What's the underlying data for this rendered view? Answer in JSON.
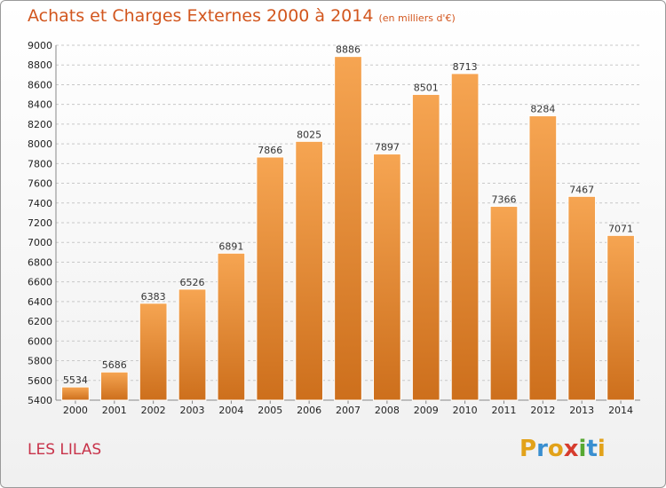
{
  "header": {
    "title": "Achats et Charges Externes 2000 à 2014",
    "unit": "(en milliers d'€)"
  },
  "footer": {
    "city": "LES LILAS",
    "logo_letters": [
      "P",
      "r",
      "o",
      "x",
      "i",
      "t",
      "i"
    ],
    "logo_colors": [
      "#e2a21a",
      "#3a8fd0",
      "#e2a21a",
      "#d63c2e",
      "#57a832",
      "#3a8fd0",
      "#e2a21a"
    ]
  },
  "colors": {
    "bar_top": "#f6a552",
    "bar_bottom": "#cd6f1c",
    "grid": "#c8c8c8"
  },
  "chart_data": {
    "type": "bar",
    "title": "Achats et Charges Externes 2000 à 2014",
    "subtitle": "(en milliers d'€)",
    "categories": [
      "2000",
      "2001",
      "2002",
      "2003",
      "2004",
      "2005",
      "2006",
      "2007",
      "2008",
      "2009",
      "2010",
      "2011",
      "2012",
      "2013",
      "2014"
    ],
    "values": [
      5534,
      5686,
      6383,
      6526,
      6891,
      7866,
      8025,
      8886,
      7897,
      8501,
      8713,
      7366,
      8284,
      7467,
      7071
    ],
    "ylim": [
      5400,
      9000
    ],
    "yticks": [
      5400,
      5600,
      5800,
      6000,
      6200,
      6400,
      6600,
      6800,
      7000,
      7200,
      7400,
      7600,
      7800,
      8000,
      8200,
      8400,
      8600,
      8800,
      9000
    ],
    "grid": true,
    "xlabel": "",
    "ylabel": ""
  }
}
